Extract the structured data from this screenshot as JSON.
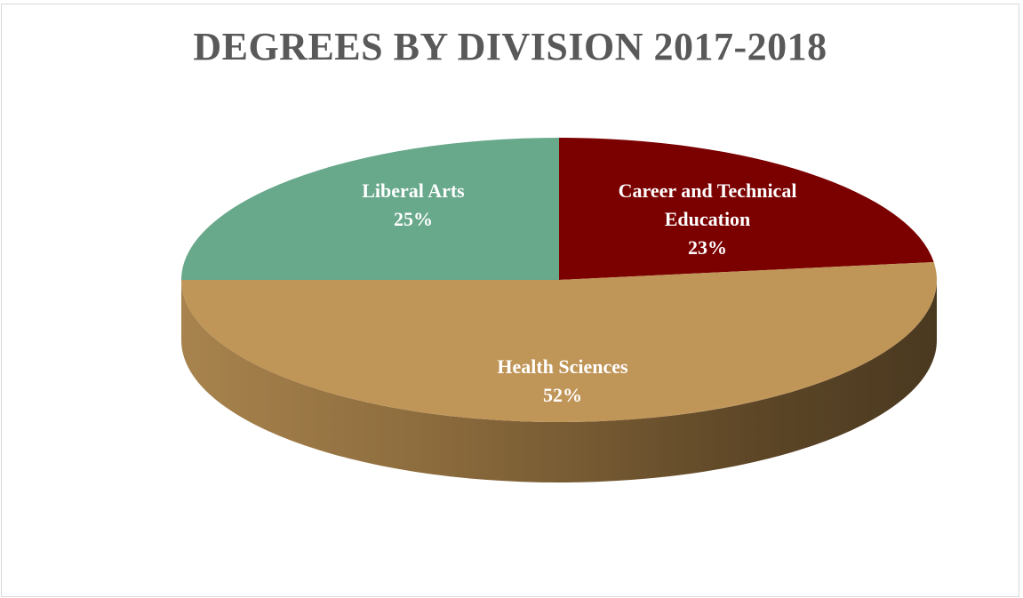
{
  "chart_data": {
    "type": "pie",
    "title": "DEGREES BY DIVISION 2017-2018",
    "slices": [
      {
        "label": "Career and Technical Education",
        "label_lines": [
          "Career and Technical",
          "Education"
        ],
        "value": 23,
        "value_text": "23%",
        "color": "#7b0000"
      },
      {
        "label": "Health Sciences",
        "label_lines": [
          "Health Sciences"
        ],
        "value": 52,
        "value_text": "52%",
        "color": "#c09558"
      },
      {
        "label": "Liberal Arts",
        "label_lines": [
          "Liberal Arts"
        ],
        "value": 25,
        "value_text": "25%",
        "color": "#68a88b"
      }
    ],
    "style": "3d",
    "legend": "none"
  }
}
